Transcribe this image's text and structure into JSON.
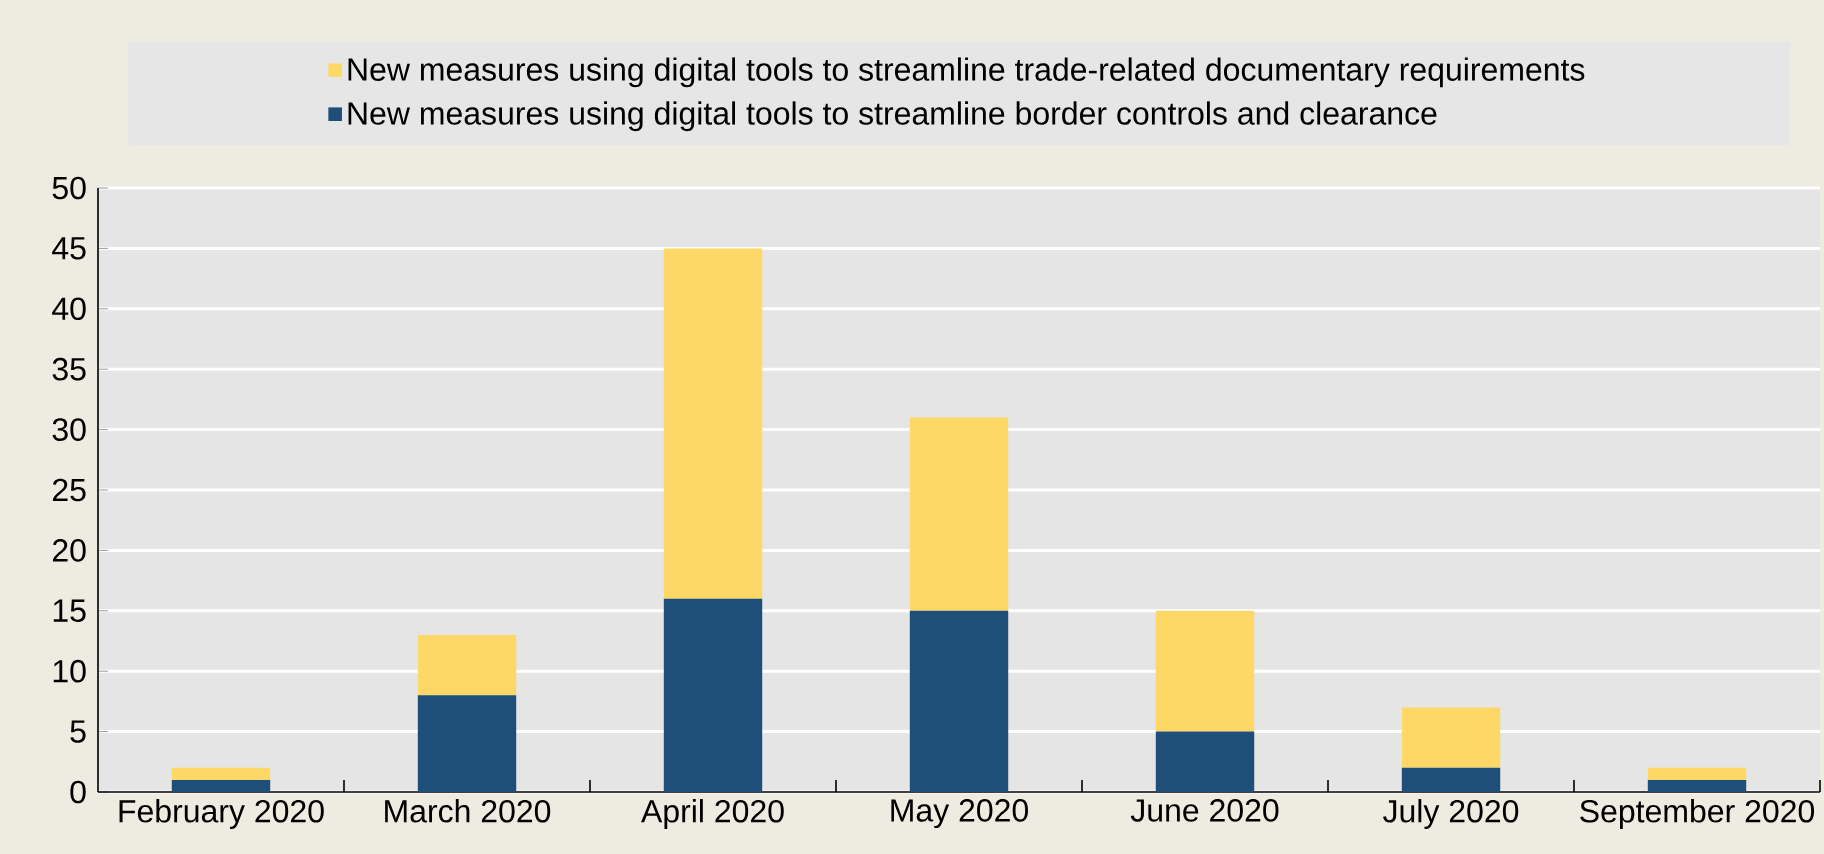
{
  "chart_data": {
    "type": "bar",
    "stacked": true,
    "categories": [
      "February 2020",
      "March 2020",
      "April 2020",
      "May 2020",
      "June 2020",
      "July 2020",
      "September 2020"
    ],
    "series": [
      {
        "name": "New measures using digital tools to streamline border controls and clearance",
        "color": "#1f4e79",
        "values": [
          1,
          8,
          16,
          15,
          5,
          2,
          1
        ]
      },
      {
        "name": "New measures using digital tools to streamline trade-related documentary requirements",
        "color": "#fdd866",
        "values": [
          1,
          5,
          29,
          16,
          10,
          5,
          1
        ]
      }
    ],
    "ylim": [
      0,
      50
    ],
    "yticks": [
      0,
      5,
      10,
      15,
      20,
      25,
      30,
      35,
      40,
      45,
      50
    ],
    "grid": "y",
    "legend": "top"
  }
}
